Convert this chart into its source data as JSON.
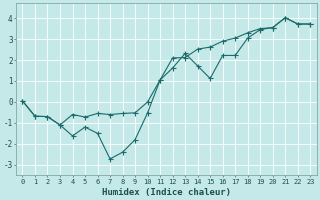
{
  "xlabel": "Humidex (Indice chaleur)",
  "bg_color": "#c5e8e8",
  "line_color": "#1a6b6b",
  "grid_color": "#e0e0e0",
  "xlim": [
    -0.5,
    23.5
  ],
  "ylim": [
    -3.5,
    4.7
  ],
  "xticks": [
    0,
    1,
    2,
    3,
    4,
    5,
    6,
    7,
    8,
    9,
    10,
    11,
    12,
    13,
    14,
    15,
    16,
    17,
    18,
    19,
    20,
    21,
    22,
    23
  ],
  "yticks": [
    -3,
    -2,
    -1,
    0,
    1,
    2,
    3,
    4
  ],
  "line1_x": [
    0,
    1,
    2,
    3,
    4,
    5,
    6,
    7,
    8,
    9,
    10,
    11,
    12,
    13,
    14,
    15,
    16,
    17,
    18,
    19,
    20,
    21,
    22,
    23
  ],
  "line1_y": [
    0.05,
    -0.68,
    -0.7,
    -1.1,
    -0.6,
    -0.72,
    -0.55,
    -0.6,
    -0.55,
    -0.52,
    0.0,
    1.05,
    2.1,
    2.12,
    2.52,
    2.62,
    2.9,
    3.05,
    3.3,
    3.5,
    3.55,
    4.02,
    3.72,
    3.72
  ],
  "line2_x": [
    0,
    1,
    2,
    3,
    4,
    5,
    6,
    7,
    8,
    9,
    10,
    11,
    12,
    13,
    14,
    15,
    16,
    17,
    18,
    19,
    20,
    21,
    22,
    23
  ],
  "line2_y": [
    0.05,
    -0.68,
    -0.7,
    -1.1,
    -1.62,
    -1.2,
    -1.5,
    -2.72,
    -2.4,
    -1.8,
    -0.52,
    1.05,
    1.62,
    2.32,
    1.72,
    1.12,
    2.22,
    2.22,
    3.05,
    3.45,
    3.55,
    4.02,
    3.72,
    3.72
  ],
  "tick_fontsize": 5.0,
  "xlabel_fontsize": 6.5,
  "marker_size": 2.0,
  "line_width": 0.8
}
